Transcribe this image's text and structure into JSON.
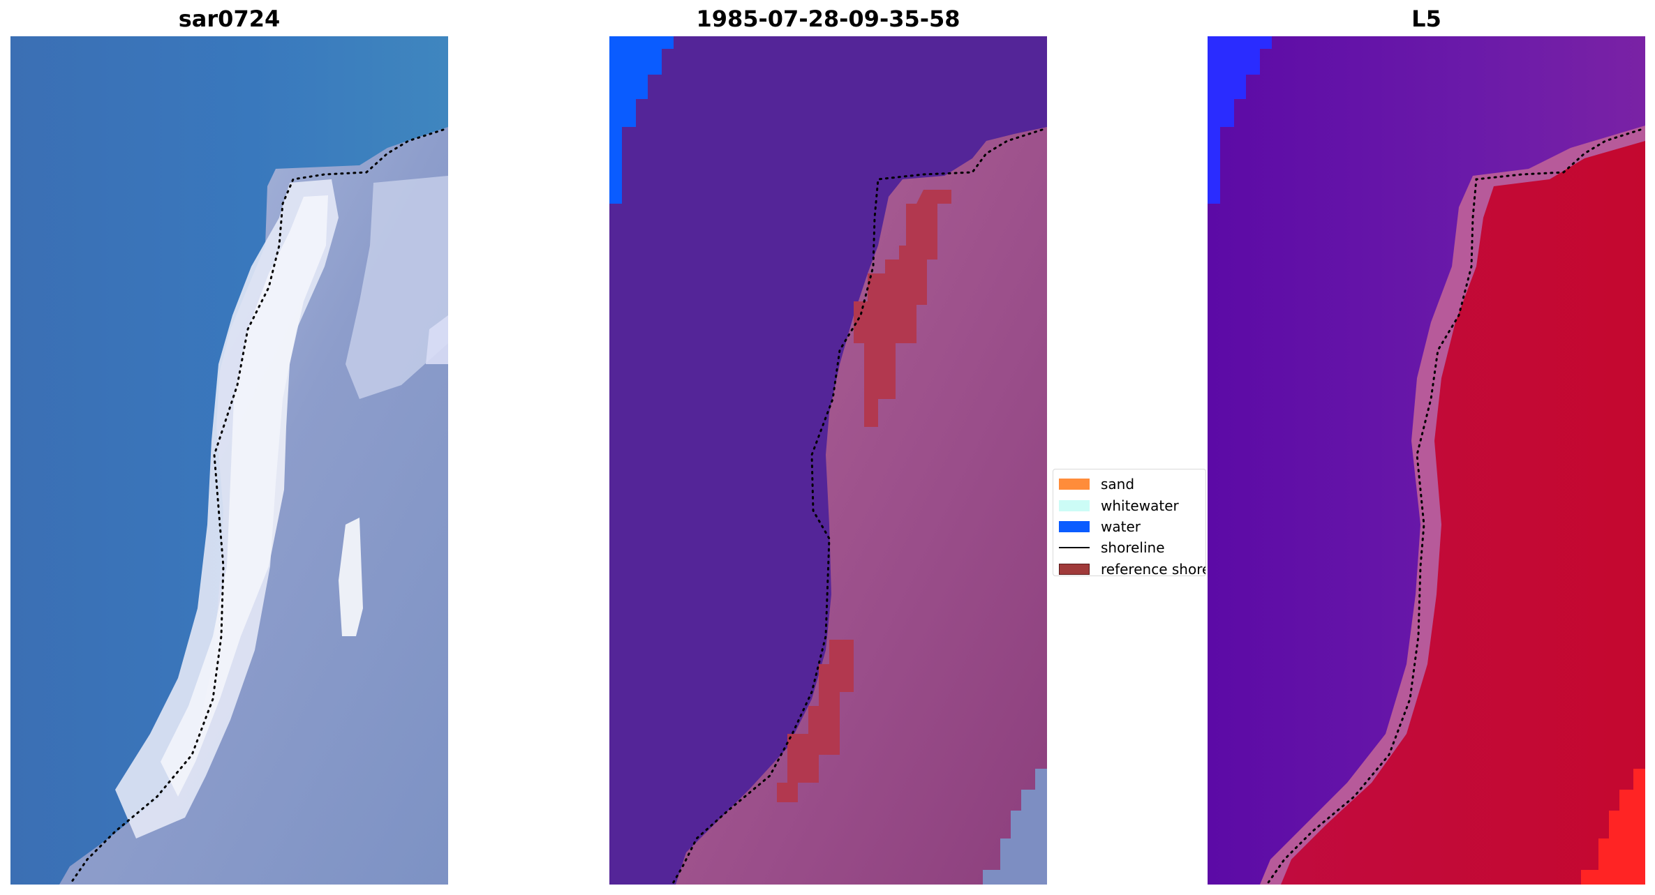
{
  "panels": [
    {
      "title": "sar0724"
    },
    {
      "title": "1985-07-28-09-35-58"
    },
    {
      "title": "L5"
    }
  ],
  "legend": {
    "placement": "center",
    "items": [
      {
        "label": "sand",
        "kind": "patch",
        "color": "#ff8c3a"
      },
      {
        "label": "whitewater",
        "kind": "patch",
        "color": "#ccfcf6"
      },
      {
        "label": "water",
        "kind": "patch",
        "color": "#0a5cff"
      },
      {
        "label": "shoreline",
        "kind": "line",
        "color": "#000000"
      },
      {
        "label": "reference shoreline",
        "kind": "patch",
        "color": "#a03a3a"
      }
    ]
  },
  "colors": {
    "rgb_water": "#3a74ba",
    "rgb_land": "#8f9dcb",
    "rgb_whitewater": "#e8ecf8",
    "class_water": "#542598",
    "class_land": "#9c4f8c",
    "class_water_mask": "#0a5cff",
    "class_ref_shoreline": "#b2384f",
    "index_water": "#6212a8",
    "index_land": "#c10b36",
    "index_mask": "#2a2cff"
  }
}
